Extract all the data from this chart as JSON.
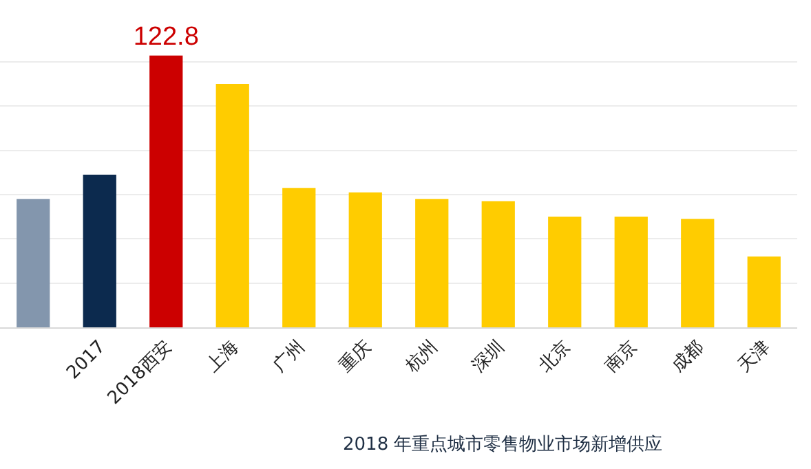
{
  "chart_data": {
    "type": "bar",
    "title": "2018 年重点城市零售物业市场新增供应",
    "grid": "y",
    "tick_labels": "x",
    "yticks": [
      {
        "value": 0,
        "label": null
      },
      {
        "value": 20,
        "label": null
      },
      {
        "value": 40,
        "label": null
      },
      {
        "value": 60,
        "label": null
      },
      {
        "value": 80,
        "label": null
      },
      {
        "value": 100,
        "label": null
      },
      {
        "value": 120,
        "label": null
      }
    ],
    "categories": [
      null,
      "2017",
      "2018西安",
      "上海",
      "广州",
      "重庆",
      "杭州",
      "深圳",
      "北京",
      "南京",
      "成都",
      "天津"
    ],
    "values": [
      58,
      69,
      122.8,
      110,
      63,
      61,
      58,
      57,
      50,
      50,
      49,
      32
    ],
    "colors": [
      "#8396ad",
      "#0c2a4e",
      "#cc0000",
      "#ffcc00",
      "#ffcc00",
      "#ffcc00",
      "#ffcc00",
      "#ffcc00",
      "#ffcc00",
      "#ffcc00",
      "#ffcc00",
      "#ffcc00"
    ],
    "value_labels": [
      null,
      null,
      "122.8",
      null,
      null,
      null,
      null,
      null,
      null,
      null,
      null,
      null
    ]
  }
}
